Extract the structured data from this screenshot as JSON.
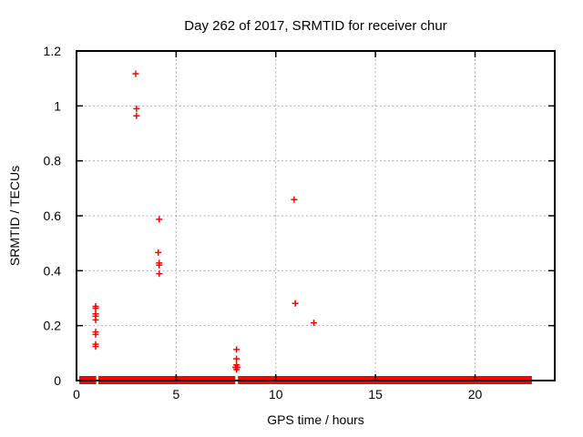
{
  "chart_data": {
    "type": "scatter",
    "title": "Day 262 of 2017, SRMTID for receiver chur",
    "xlabel": "GPS time / hours",
    "ylabel": "SRMTID / TECUs",
    "xlim": [
      0,
      24
    ],
    "ylim": [
      0,
      1.2
    ],
    "xticks": {
      "values": [
        0,
        5,
        10,
        15,
        20
      ],
      "labels": [
        "0",
        "5",
        "10",
        "15",
        "20"
      ]
    },
    "yticks": {
      "values": [
        0,
        0.2,
        0.4,
        0.6,
        0.8,
        1.0,
        1.2
      ],
      "labels": [
        "0",
        "0.2",
        "0.4",
        "0.6",
        "0.8",
        "1",
        "1.2"
      ]
    },
    "grid": true,
    "legend": false,
    "marker": {
      "shape": "plus",
      "color": "#ff0000",
      "size": 7
    },
    "colors": {
      "marker": "#ff0000",
      "grid": "#b0b0b0",
      "axis": "#000000",
      "background": "#ffffff"
    },
    "points": [
      [
        0.96,
        0.27
      ],
      [
        0.96,
        0.263
      ],
      [
        0.96,
        0.243
      ],
      [
        0.96,
        0.234
      ],
      [
        0.96,
        0.221
      ],
      [
        0.96,
        0.177
      ],
      [
        0.96,
        0.168
      ],
      [
        0.96,
        0.132
      ],
      [
        0.96,
        0.124
      ],
      [
        2.97,
        1.117
      ],
      [
        3.01,
        0.99
      ],
      [
        3.01,
        0.964
      ],
      [
        4.15,
        0.587
      ],
      [
        4.1,
        0.466
      ],
      [
        4.15,
        0.428
      ],
      [
        4.15,
        0.42
      ],
      [
        4.15,
        0.389
      ],
      [
        8.03,
        0.113
      ],
      [
        8.03,
        0.079
      ],
      [
        7.98,
        0.048
      ],
      [
        8.08,
        0.048
      ],
      [
        8.03,
        0.057
      ],
      [
        8.03,
        0.04
      ],
      [
        8.03,
        0.048
      ],
      [
        10.92,
        0.659
      ],
      [
        10.98,
        0.281
      ],
      [
        11.91,
        0.21
      ]
    ],
    "baseline_band": {
      "y": 0,
      "thickness_px": 9,
      "segments": [
        [
          0.14,
          0.99
        ],
        [
          1.1,
          7.97
        ],
        [
          8.1,
          22.85
        ]
      ]
    }
  }
}
